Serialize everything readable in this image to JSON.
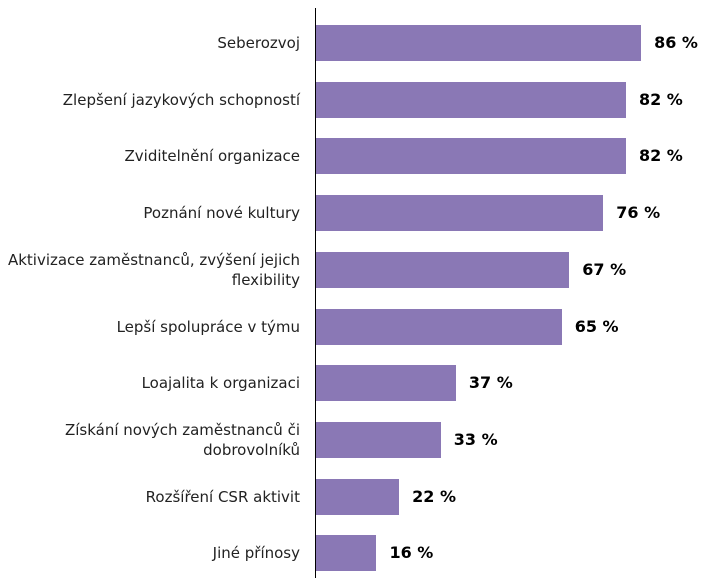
{
  "chart_data": {
    "type": "barh",
    "categories": [
      "Seberozvoj",
      "Zlepšení jazykových schopností",
      "Zviditelnění organizace",
      "Poznání nové kultury",
      "Aktivizace zaměstnanců, zvýšení jejich flexibility",
      "Lepší spolupráce v týmu",
      "Loajalita k organizaci",
      "Získání nových zaměstnanců či dobrovolníků",
      "Rozšíření CSR aktivit",
      "Jiné přínosy"
    ],
    "values": [
      86,
      82,
      82,
      76,
      67,
      65,
      37,
      33,
      22,
      16
    ],
    "value_labels": [
      "86 %",
      "82 %",
      "82 %",
      "76 %",
      "67 %",
      "65 %",
      "37 %",
      "33 %",
      "22 %",
      "16 %"
    ],
    "color": "#8a78b5"
  }
}
